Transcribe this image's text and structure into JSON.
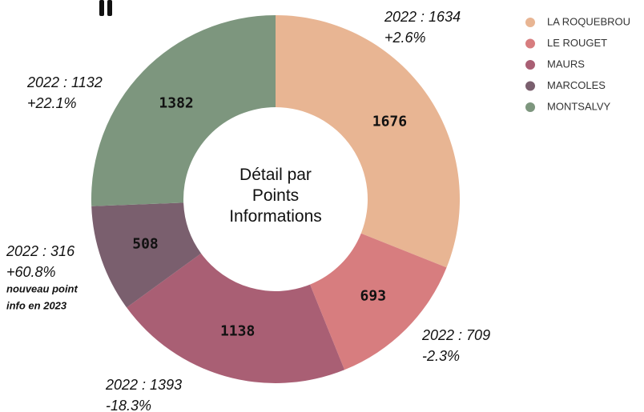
{
  "chart_data": {
    "type": "donut",
    "title": "Détail par Points Informations",
    "categories": [
      "LA ROQUEBROU",
      "LE ROUGET",
      "MAURS",
      "MARCOLES",
      "MONTSALVY"
    ],
    "values": [
      1676,
      693,
      1138,
      508,
      1382
    ],
    "colors": [
      "#e8b593",
      "#d77d7f",
      "#a95f74",
      "#7a5f6e",
      "#7d967e"
    ],
    "annotations": [
      {
        "lines": [
          "2022 : 1634",
          "+2.6%"
        ]
      },
      {
        "lines": [
          "2022 : 709",
          "-2.3%"
        ]
      },
      {
        "lines": [
          "2022 : 1393",
          "-18.3%"
        ]
      },
      {
        "lines": [
          "2022 : 316",
          "+60.8%"
        ],
        "note": [
          "nouveau point",
          "info en 2023"
        ]
      },
      {
        "lines": [
          "2022 : 1132",
          "+22.1%"
        ]
      }
    ],
    "legend": "top-right"
  }
}
